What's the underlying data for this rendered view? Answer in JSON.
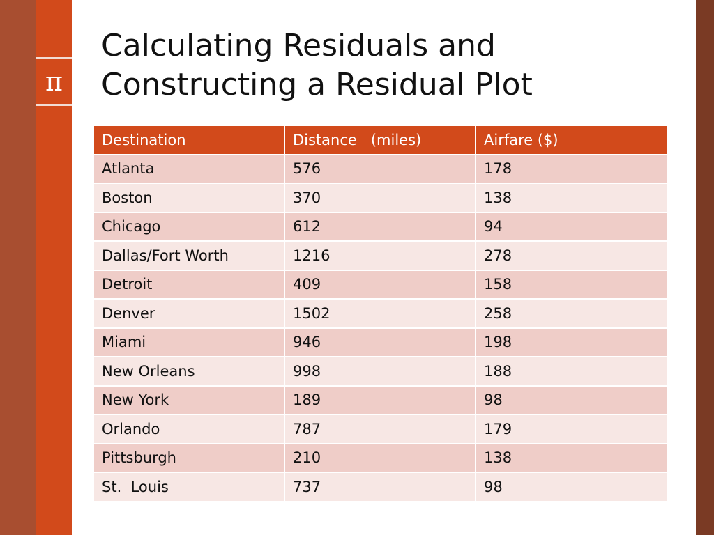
{
  "slide": {
    "title_line1": "Calculating Residuals and",
    "title_line2": "Constructing a Residual Plot",
    "icon_symbol": "π"
  },
  "colors": {
    "accent": "#d24a1b",
    "left_bar_dark": "#a84e30",
    "right_bar": "#7a3a24",
    "row_odd": "#efcdc8",
    "row_even": "#f7e7e4"
  },
  "table": {
    "headers": [
      "Destination",
      "Distance   (miles)",
      "Airfare ($)"
    ],
    "rows": [
      [
        "Atlanta",
        "576",
        "178"
      ],
      [
        "Boston",
        "370",
        "138"
      ],
      [
        "Chicago",
        "612",
        "94"
      ],
      [
        "Dallas/Fort Worth",
        "1216",
        "278"
      ],
      [
        "Detroit",
        "409",
        "158"
      ],
      [
        "Denver",
        "1502",
        "258"
      ],
      [
        "Miami",
        "946",
        "198"
      ],
      [
        "New Orleans",
        "998",
        "188"
      ],
      [
        "New York",
        "189",
        "98"
      ],
      [
        "Orlando",
        "787",
        "179"
      ],
      [
        "Pittsburgh",
        "210",
        "138"
      ],
      [
        "St.  Louis",
        "737",
        "98"
      ]
    ]
  }
}
